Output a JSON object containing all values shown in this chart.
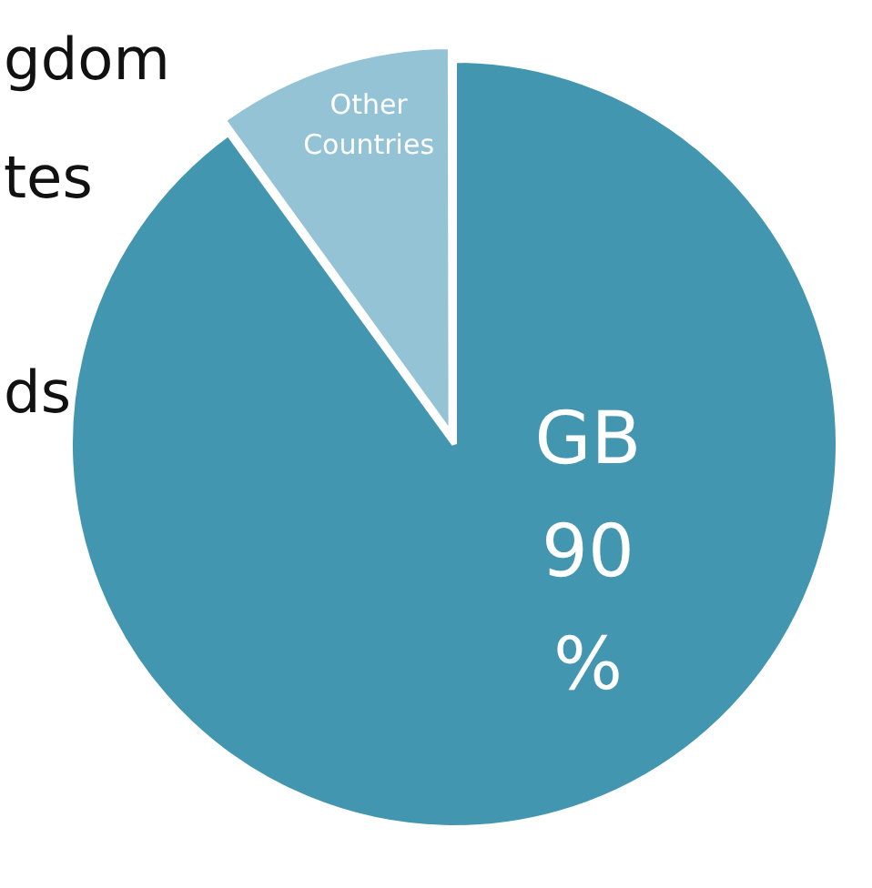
{
  "chart_data": {
    "type": "pie",
    "categories": [
      "GB",
      "Other Countries"
    ],
    "values": [
      90,
      10
    ],
    "colors": [
      "#4396b0",
      "#93c3d5"
    ],
    "value_labels": [
      "90 %",
      null
    ],
    "annotations": [
      "gdom",
      "tes",
      "ds"
    ]
  }
}
